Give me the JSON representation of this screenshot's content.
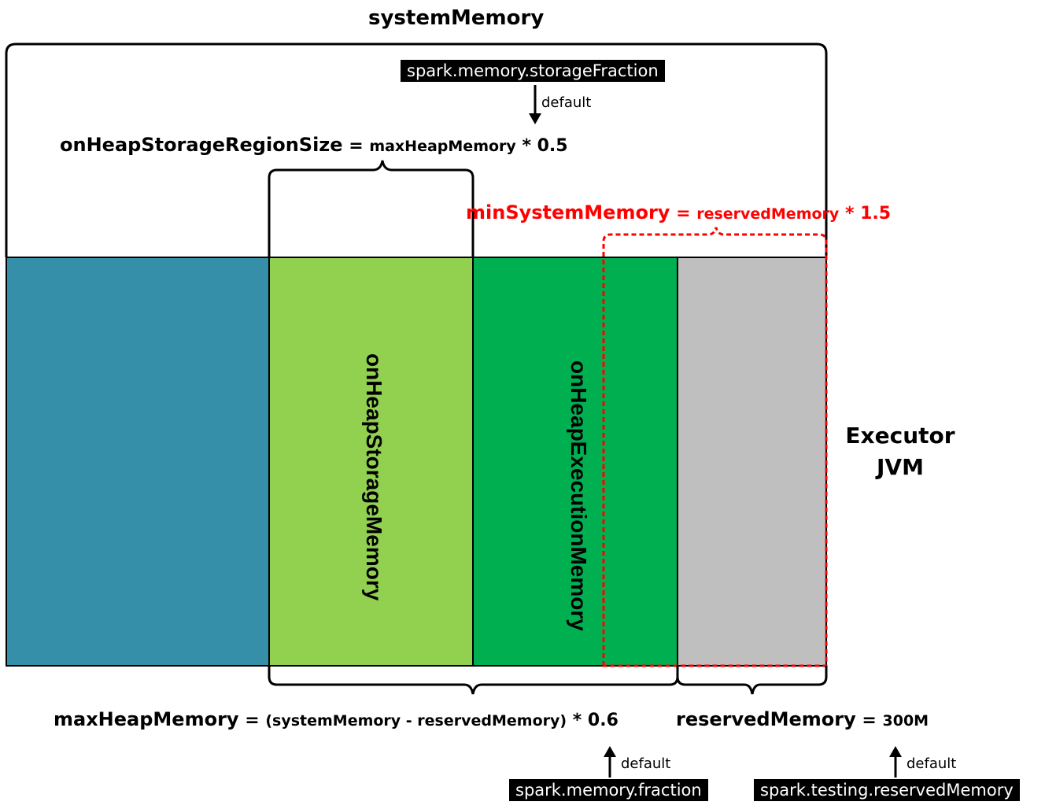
{
  "top_label": "systemMemory",
  "storage_fraction": {
    "tag": "spark.memory.storageFraction",
    "default_label": "default"
  },
  "storage_region_formula": {
    "lhs": "onHeapStorageRegionSize",
    "eq": " = ",
    "rhs": "maxHeapMemory",
    "op": " * 0.5"
  },
  "min_system_formula": {
    "lhs": "minSystemMemory",
    "eq": " = ",
    "rhs": "reservedMemory",
    "op": " * 1.5"
  },
  "regions": {
    "storage_label": "onHeapStorageMemory",
    "execution_label": "onHeapExecutionMemory"
  },
  "executor": {
    "line1": "Executor",
    "line2": "JVM"
  },
  "max_heap_formula": {
    "lhs": "maxHeapMemory",
    "eq": " = ",
    "rhs": "(systemMemory - reservedMemory)",
    "op": " * 0.6"
  },
  "reserved_formula": {
    "lhs": "reservedMemory",
    "eq": " = ",
    "rhs": "300M"
  },
  "memory_fraction": {
    "tag": "spark.memory.fraction",
    "default_label": "default"
  },
  "testing_reserved": {
    "tag": "spark.testing.reservedMemory",
    "default_label": "default"
  },
  "colors": {
    "user_memory": "#368fa8",
    "storage": "#92d050",
    "execution": "#00b050",
    "reserved": "#bfbfbf",
    "highlight": "#ff0000"
  }
}
